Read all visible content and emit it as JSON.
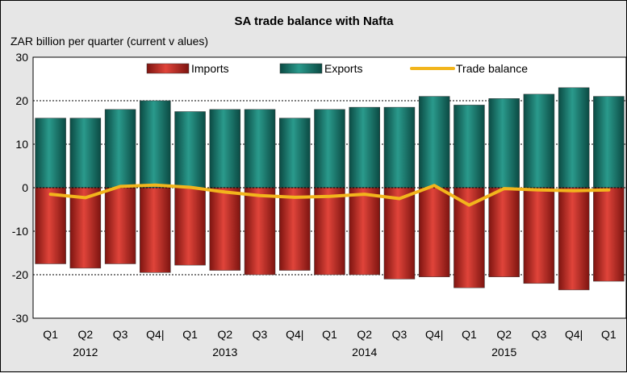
{
  "chart_data": {
    "type": "bar",
    "title": "SA trade balance with Nafta",
    "ylabel": "ZAR billion per quarter (current v alues)",
    "ylim": [
      -30,
      30
    ],
    "yticks": [
      30,
      20,
      10,
      0,
      -10,
      -20,
      -30
    ],
    "categories": [
      "Q1",
      "Q2",
      "Q3",
      "Q4|",
      "Q1",
      "Q2",
      "Q3",
      "Q4|",
      "Q1",
      "Q2",
      "Q3",
      "Q4|",
      "Q1",
      "Q2",
      "Q3",
      "Q4|",
      "Q1"
    ],
    "year_labels": [
      {
        "label": "2012",
        "index": 1
      },
      {
        "label": "2013",
        "index": 5
      },
      {
        "label": "2014",
        "index": 9
      },
      {
        "label": "2015",
        "index": 13
      }
    ],
    "legend_position": "top",
    "series": [
      {
        "name": "Imports",
        "kind": "bar",
        "color": "#c0221b",
        "values": [
          -17.5,
          -18.5,
          -17.5,
          -19.5,
          -17.8,
          -19,
          -20,
          -19,
          -20,
          -20,
          -21,
          -20.5,
          -23,
          -20.5,
          -22,
          -23.5,
          -21.5
        ]
      },
      {
        "name": "Exports",
        "kind": "bar",
        "color": "#17746a",
        "values": [
          16,
          16,
          18,
          20,
          17.5,
          18,
          18,
          16,
          18,
          18.5,
          18.5,
          21,
          19,
          20.5,
          21.5,
          23,
          21
        ]
      },
      {
        "name": "Trade balance",
        "kind": "line",
        "color": "#f2b51c",
        "values": [
          -1.5,
          -2.3,
          0.3,
          0.6,
          0.1,
          -1,
          -1.8,
          -2.2,
          -2,
          -1.5,
          -2.5,
          0.5,
          -4,
          -0.2,
          -0.5,
          -0.7,
          -0.5
        ]
      }
    ]
  }
}
